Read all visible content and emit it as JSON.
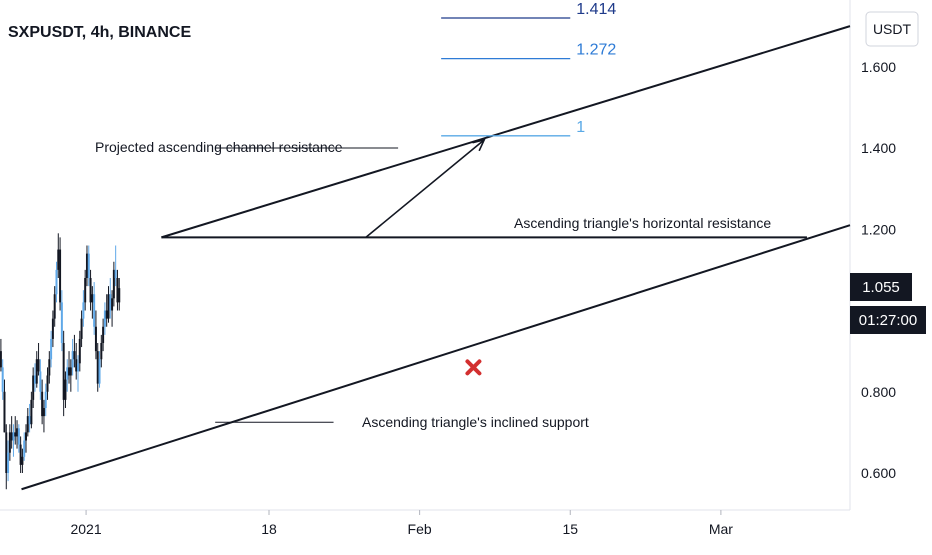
{
  "chart_data": {
    "type": "candlestick",
    "title": "SXPUSDT, 4h, BINANCE",
    "currency_label": "USDT",
    "y_ticks": [
      {
        "value": 0.6,
        "label": "0.600"
      },
      {
        "value": 0.8,
        "label": "0.800"
      },
      {
        "value": 1.2,
        "label": "1.200"
      },
      {
        "value": 1.4,
        "label": "1.400"
      },
      {
        "value": 1.6,
        "label": "1.600"
      }
    ],
    "ylim": [
      0.48,
      1.72
    ],
    "x_ticks": [
      {
        "date": "2021-01-01",
        "label": "2021"
      },
      {
        "date": "2021-01-18",
        "label": "18"
      },
      {
        "date": "2021-02-01",
        "label": "Feb"
      },
      {
        "date": "2021-02-15",
        "label": "15"
      },
      {
        "date": "2021-03-01",
        "label": "Mar"
      }
    ],
    "xlim": [
      "2020-12-24",
      "2021-03-13"
    ],
    "last_price": {
      "value": 1.055,
      "label": "1.055",
      "countdown": "01:27:00"
    },
    "candles": {
      "start": "2020-12-24T00:00",
      "interval_hours": 4,
      "base_color": "#131722",
      "alt_color": "#5fa8e8",
      "ohlc": [
        [
          0.9,
          0.93,
          0.85,
          0.86
        ],
        [
          0.86,
          0.88,
          0.78,
          0.8
        ],
        [
          0.8,
          0.83,
          0.7,
          0.7
        ],
        [
          0.7,
          0.72,
          0.56,
          0.6
        ],
        [
          0.6,
          0.68,
          0.58,
          0.65
        ],
        [
          0.65,
          0.72,
          0.63,
          0.7
        ],
        [
          0.7,
          0.74,
          0.66,
          0.68
        ],
        [
          0.68,
          0.72,
          0.64,
          0.7
        ],
        [
          0.7,
          0.74,
          0.67,
          0.69
        ],
        [
          0.69,
          0.73,
          0.66,
          0.71
        ],
        [
          0.71,
          0.72,
          0.65,
          0.67
        ],
        [
          0.67,
          0.69,
          0.6,
          0.62
        ],
        [
          0.62,
          0.66,
          0.6,
          0.64
        ],
        [
          0.64,
          0.7,
          0.63,
          0.68
        ],
        [
          0.68,
          0.72,
          0.65,
          0.7
        ],
        [
          0.7,
          0.76,
          0.69,
          0.74
        ],
        [
          0.74,
          0.77,
          0.7,
          0.72
        ],
        [
          0.72,
          0.8,
          0.71,
          0.78
        ],
        [
          0.78,
          0.86,
          0.76,
          0.84
        ],
        [
          0.84,
          0.87,
          0.8,
          0.82
        ],
        [
          0.82,
          0.9,
          0.81,
          0.88
        ],
        [
          0.88,
          0.92,
          0.84,
          0.85
        ],
        [
          0.85,
          0.88,
          0.78,
          0.8
        ],
        [
          0.8,
          0.83,
          0.72,
          0.74
        ],
        [
          0.74,
          0.78,
          0.7,
          0.76
        ],
        [
          0.76,
          0.82,
          0.74,
          0.8
        ],
        [
          0.8,
          0.86,
          0.78,
          0.84
        ],
        [
          0.84,
          0.9,
          0.82,
          0.88
        ],
        [
          0.88,
          0.95,
          0.86,
          0.93
        ],
        [
          0.93,
          1.0,
          0.91,
          0.98
        ],
        [
          0.98,
          1.06,
          0.96,
          1.04
        ],
        [
          1.04,
          1.12,
          1.02,
          1.1
        ],
        [
          1.1,
          1.19,
          1.08,
          1.15
        ],
        [
          1.15,
          1.18,
          1.0,
          1.02
        ],
        [
          1.02,
          1.05,
          0.9,
          0.92
        ],
        [
          0.92,
          0.95,
          0.74,
          0.78
        ],
        [
          0.78,
          0.85,
          0.76,
          0.83
        ],
        [
          0.83,
          0.88,
          0.8,
          0.86
        ],
        [
          0.86,
          0.9,
          0.82,
          0.84
        ],
        [
          0.84,
          0.88,
          0.8,
          0.86
        ],
        [
          0.86,
          0.93,
          0.84,
          0.9
        ],
        [
          0.9,
          0.94,
          0.86,
          0.88
        ],
        [
          0.88,
          0.92,
          0.83,
          0.85
        ],
        [
          0.85,
          0.89,
          0.8,
          0.87
        ],
        [
          0.87,
          0.95,
          0.85,
          0.93
        ],
        [
          0.93,
          1.0,
          0.91,
          0.98
        ],
        [
          0.98,
          1.05,
          0.96,
          1.02
        ],
        [
          1.02,
          1.1,
          1.0,
          1.08
        ],
        [
          1.08,
          1.16,
          1.06,
          1.14
        ],
        [
          1.14,
          1.16,
          1.06,
          1.08
        ],
        [
          1.08,
          1.1,
          1.0,
          1.02
        ],
        [
          1.02,
          1.06,
          0.98,
          1.04
        ],
        [
          1.04,
          1.07,
          0.94,
          0.96
        ],
        [
          0.96,
          1.0,
          0.88,
          0.9
        ],
        [
          0.9,
          0.92,
          0.8,
          0.82
        ],
        [
          0.82,
          0.9,
          0.81,
          0.88
        ],
        [
          0.88,
          0.94,
          0.86,
          0.92
        ],
        [
          0.92,
          0.98,
          0.9,
          0.96
        ],
        [
          0.96,
          1.02,
          0.94,
          1.0
        ],
        [
          1.0,
          1.04,
          0.96,
          0.98
        ],
        [
          0.98,
          1.06,
          0.97,
          1.04
        ],
        [
          1.04,
          1.08,
          0.98,
          1.0
        ],
        [
          1.0,
          1.05,
          0.96,
          1.03
        ],
        [
          1.03,
          1.12,
          1.01,
          1.1
        ],
        [
          1.1,
          1.16,
          1.06,
          1.08
        ],
        [
          1.08,
          1.1,
          1.0,
          1.02
        ],
        [
          1.02,
          1.08,
          1.0,
          1.055
        ]
      ]
    },
    "trendlines": [
      {
        "name": "channel-resistance",
        "from": {
          "date": "2021-01-08",
          "value": 1.18
        },
        "to": {
          "date": "2021-03-13",
          "value": 1.7
        }
      },
      {
        "name": "inclined-support",
        "from": {
          "date": "2020-12-26",
          "value": 0.56
        },
        "to": {
          "date": "2021-03-13",
          "value": 1.21
        }
      },
      {
        "name": "horizontal-resistance",
        "from": {
          "date": "2021-01-08",
          "value": 1.18
        },
        "to": {
          "date": "2021-03-09",
          "value": 1.18
        }
      }
    ],
    "fib_levels": [
      {
        "ratio": "1.414",
        "value": 1.72,
        "color": "#1e3a8a"
      },
      {
        "ratio": "1.272",
        "value": 1.62,
        "color": "#2e7bd6"
      },
      {
        "ratio": "1",
        "value": 1.43,
        "color": "#5aa9e6"
      }
    ],
    "fib_range": {
      "from": "2021-02-03",
      "to": "2021-02-15"
    },
    "arrows": [
      {
        "from": {
          "date": "2021-01-27",
          "value": 1.18
        },
        "to": {
          "date": "2021-02-07",
          "value": 1.42
        }
      }
    ],
    "marker": {
      "type": "x",
      "date": "2021-02-06",
      "value": 0.86,
      "color": "#d32f2f"
    },
    "annotations": [
      {
        "text": "Projected ascending channel resistance",
        "leader": {
          "from_date": "2021-01-13",
          "to_date": "2021-01-30",
          "value": 1.4
        }
      },
      {
        "text": "Ascending triangle's horizontal resistance"
      },
      {
        "text": "Ascending triangle's inclined support",
        "leader": {
          "from_date": "2021-01-13",
          "to_date": "2021-01-24",
          "value": 0.725
        }
      }
    ]
  }
}
